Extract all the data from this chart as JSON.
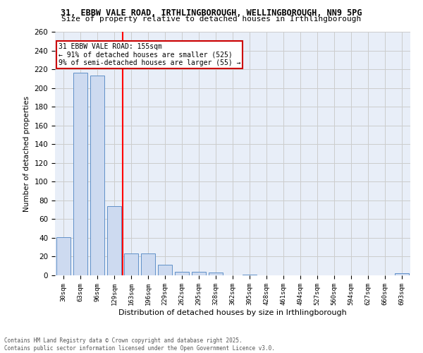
{
  "title_line1": "31, EBBW VALE ROAD, IRTHLINGBOROUGH, WELLINGBOROUGH, NN9 5PG",
  "title_line2": "Size of property relative to detached houses in Irthlingborough",
  "xlabel": "Distribution of detached houses by size in Irthlingborough",
  "ylabel": "Number of detached properties",
  "categories": [
    "30sqm",
    "63sqm",
    "96sqm",
    "129sqm",
    "163sqm",
    "196sqm",
    "229sqm",
    "262sqm",
    "295sqm",
    "328sqm",
    "362sqm",
    "395sqm",
    "428sqm",
    "461sqm",
    "494sqm",
    "527sqm",
    "560sqm",
    "594sqm",
    "627sqm",
    "660sqm",
    "693sqm"
  ],
  "values": [
    41,
    216,
    213,
    74,
    23,
    23,
    11,
    4,
    4,
    3,
    0,
    1,
    0,
    0,
    0,
    0,
    0,
    0,
    0,
    0,
    2
  ],
  "bar_color": "#cddaf0",
  "bar_edge_color": "#6090c8",
  "grid_color": "#cccccc",
  "bg_color": "#e8eef8",
  "red_line_x": 3.5,
  "annotation_title": "31 EBBW VALE ROAD: 155sqm",
  "annotation_line1": "← 91% of detached houses are smaller (525)",
  "annotation_line2": "9% of semi-detached houses are larger (55) →",
  "annotation_box_color": "#cc0000",
  "ylim": [
    0,
    260
  ],
  "yticks": [
    0,
    20,
    40,
    60,
    80,
    100,
    120,
    140,
    160,
    180,
    200,
    220,
    240,
    260
  ],
  "footer_line1": "Contains HM Land Registry data © Crown copyright and database right 2025.",
  "footer_line2": "Contains public sector information licensed under the Open Government Licence v3.0."
}
